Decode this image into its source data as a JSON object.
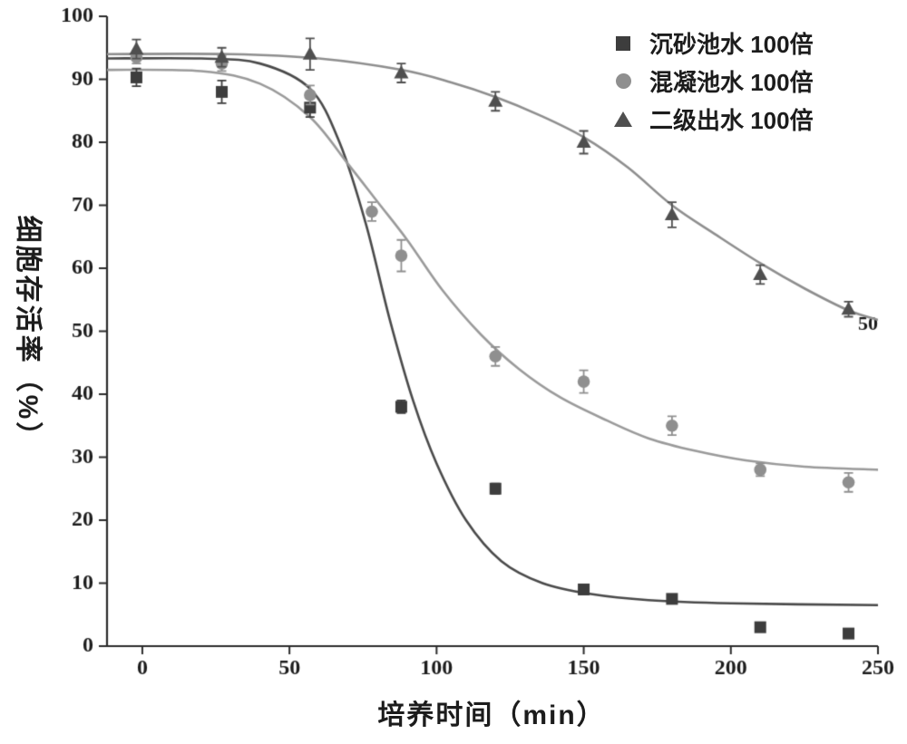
{
  "chart_data": {
    "type": "scatter",
    "title": "",
    "xlabel": "培养时间（min）",
    "ylabel": "细胞存活率（%）",
    "xlim": [
      -12,
      250
    ],
    "ylim": [
      0,
      100
    ],
    "x_ticks": [
      0,
      50,
      100,
      150,
      200,
      250
    ],
    "y_ticks": [
      0,
      10,
      20,
      30,
      40,
      50,
      60,
      70,
      80,
      90,
      100
    ],
    "grid": false,
    "legend_position": "top-right",
    "axis_color": "#2b2b2b",
    "text_color": "#1c1c1c",
    "right_edge_label": "50",
    "series": [
      {
        "name": "沉砂池水 100倍",
        "marker": "square",
        "marker_color": "#3d3d3d",
        "line_color": "#4a4a4a",
        "points": [
          [
            -2,
            90.3,
            1.4
          ],
          [
            27,
            88,
            1.8
          ],
          [
            57,
            85.5,
            1.5
          ],
          [
            88,
            38,
            1.0
          ],
          [
            120,
            25,
            0.8
          ],
          [
            150,
            9,
            0.8
          ],
          [
            180,
            7.5,
            0.7
          ],
          [
            210,
            3,
            0.6
          ],
          [
            240,
            2,
            0.6
          ]
        ],
        "fit_curve": [
          [
            -12,
            93.3
          ],
          [
            20,
            93.3
          ],
          [
            40,
            92.5
          ],
          [
            57,
            88.5
          ],
          [
            67,
            80
          ],
          [
            76,
            67
          ],
          [
            84,
            52
          ],
          [
            92,
            39
          ],
          [
            100,
            29
          ],
          [
            110,
            20
          ],
          [
            122,
            13.5
          ],
          [
            136,
            10
          ],
          [
            152,
            8.3
          ],
          [
            172,
            7.3
          ],
          [
            200,
            6.8
          ],
          [
            250,
            6.5
          ]
        ]
      },
      {
        "name": "混凝池水 100倍",
        "marker": "circle",
        "marker_color": "#8f8f8f",
        "line_color": "#9a9a9a",
        "points": [
          [
            -2,
            93.5,
            1.0
          ],
          [
            27,
            92.5,
            1.2
          ],
          [
            57,
            87.5,
            1.5
          ],
          [
            78,
            69,
            1.5
          ],
          [
            88,
            62,
            2.5
          ],
          [
            120,
            46,
            1.5
          ],
          [
            150,
            42,
            1.8
          ],
          [
            180,
            35,
            1.5
          ],
          [
            210,
            28,
            1.0
          ],
          [
            240,
            26,
            1.5
          ]
        ],
        "fit_curve": [
          [
            -12,
            91.5
          ],
          [
            20,
            91.3
          ],
          [
            40,
            89.3
          ],
          [
            57,
            84
          ],
          [
            70,
            76.5
          ],
          [
            80,
            70.5
          ],
          [
            90,
            64.5
          ],
          [
            102,
            56.5
          ],
          [
            115,
            49.5
          ],
          [
            128,
            44
          ],
          [
            142,
            39.5
          ],
          [
            158,
            35.8
          ],
          [
            172,
            33
          ],
          [
            188,
            31
          ],
          [
            205,
            29.5
          ],
          [
            225,
            28.5
          ],
          [
            250,
            28
          ]
        ]
      },
      {
        "name": "二级出水 100倍",
        "marker": "triangle",
        "marker_color": "#4f4f4f",
        "line_color": "#8e8e8e",
        "points": [
          [
            -2,
            94.8,
            1.5
          ],
          [
            27,
            93.5,
            1.5
          ],
          [
            57,
            94,
            2.5
          ],
          [
            88,
            91,
            1.5
          ],
          [
            120,
            86.5,
            1.5
          ],
          [
            150,
            80,
            1.8
          ],
          [
            180,
            68.5,
            2.0
          ],
          [
            210,
            59,
            1.5
          ],
          [
            240,
            53.5,
            1.2
          ]
        ],
        "fit_curve": [
          [
            -12,
            94
          ],
          [
            30,
            94
          ],
          [
            60,
            93.3
          ],
          [
            88,
            91.5
          ],
          [
            105,
            89.5
          ],
          [
            120,
            87.2
          ],
          [
            135,
            84.3
          ],
          [
            150,
            80.8
          ],
          [
            165,
            76
          ],
          [
            180,
            70
          ],
          [
            195,
            65.3
          ],
          [
            210,
            60.8
          ],
          [
            225,
            56.8
          ],
          [
            240,
            53.3
          ],
          [
            250,
            51.8
          ]
        ]
      }
    ]
  }
}
